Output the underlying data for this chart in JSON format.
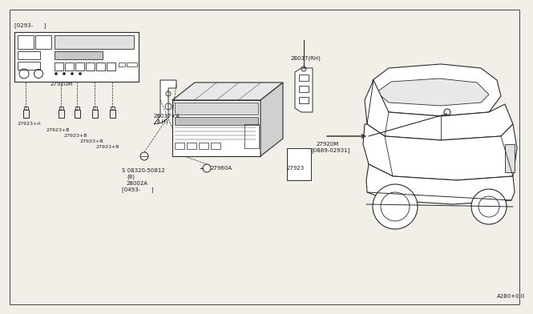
{
  "bg_color": "#f2efe9",
  "line_color": "#2a2a2a",
  "text_color": "#1a1a1a",
  "title_label": "A280+0.0",
  "labels": {
    "bracket_top": "[0293-      ]",
    "part_27920M_left": "27920M",
    "part_27923A": "27923+A",
    "part_27923B1": "27923+B",
    "part_27923B2": "27923+B",
    "part_27923B3": "27923+B",
    "part_27923B4": "27923+B",
    "part_28037LH_a": "28037+A",
    "part_28037LH_b": "(LH)",
    "part_28037RH": "28037(RH)",
    "part_27920M_right": "27920M",
    "part_27920M_bracket": "[0889-02931]",
    "part_27923": "27923",
    "part_27960A": "27960A",
    "screw_label1": "S 08320-50812",
    "screw_label2": "(8)",
    "screw_label3": "28002A",
    "screw_label4": "[0493-      ]"
  },
  "fs": 5.0
}
